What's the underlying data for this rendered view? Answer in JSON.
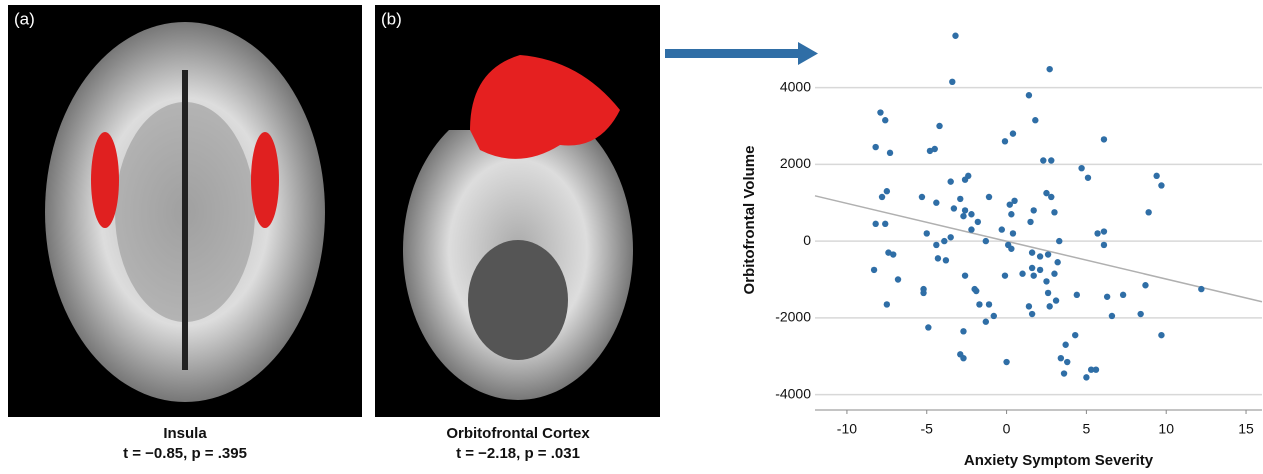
{
  "panels": [
    {
      "label": "(a)",
      "caption": "Insula",
      "stats": "t = −0.85, p = .395"
    },
    {
      "label": "(b)",
      "caption": "Orbitofrontal Cortex",
      "stats": "t = −2.18, p = .031"
    }
  ],
  "chart_data": {
    "type": "scatter",
    "x_label": "Anxiety Symptom Severity",
    "y_label": "Orbitofrontal Volume",
    "color": "#2f6ea6",
    "grid": true,
    "xlim": [
      -12,
      16
    ],
    "ylim": [
      -4400,
      5500
    ],
    "xticks": [
      -10,
      -5,
      0,
      5,
      10,
      15
    ],
    "yticks": [
      -4000,
      -2000,
      0,
      2000,
      4000
    ],
    "fit_line": {
      "color": "#b0b0b0",
      "x": [
        -12,
        16
      ],
      "y": [
        1180,
        -1580
      ]
    },
    "x": [
      -8.2,
      -7.3,
      -4.8,
      -4.5,
      -3.5,
      -2.6,
      -2.4,
      -7.5,
      -7.8,
      -5.3,
      -4.4,
      -2.9,
      -2.6,
      -2.2,
      -2.7,
      -3.3,
      -1.1,
      0.2,
      0.5,
      0.3,
      1.5,
      1.7,
      2.3,
      2.8,
      2.5,
      2.8,
      3.0,
      4.7,
      5.1,
      6.1,
      9.4,
      9.7,
      8.9,
      -0.1,
      0.4,
      1.8,
      2.7,
      1.4,
      -3.2,
      -3.4,
      -7.9,
      -7.6,
      -4.2,
      -8.2,
      -7.6,
      -5.0,
      -4.4,
      -3.9,
      -3.5,
      -2.2,
      -1.8,
      -1.3,
      -0.3,
      0.1,
      0.3,
      0.4,
      1.6,
      2.1,
      2.6,
      3.2,
      5.7,
      6.1,
      6.1,
      -7.1,
      -7.4,
      -6.8,
      -7.5,
      -8.3,
      -5.2,
      -5.2,
      -4.3,
      -3.8,
      -2.6,
      -2.0,
      -1.7,
      -1.1,
      -1.3,
      -0.8,
      -2.7,
      -2.9,
      -2.7,
      -4.9,
      -0.1,
      1.0,
      1.6,
      1.7,
      2.1,
      2.5,
      2.6,
      3.0,
      3.1,
      2.7,
      1.4,
      1.6,
      0.0,
      3.4,
      3.8,
      3.7,
      4.3,
      3.6,
      5.0,
      5.3,
      5.6,
      6.3,
      6.6,
      7.3,
      8.7,
      8.4,
      9.7,
      12.2,
      4.4,
      3.3,
      -1.9
    ],
    "values": [
      2450,
      2300,
      2350,
      2400,
      1550,
      1600,
      1700,
      1300,
      1150,
      1150,
      1000,
      1100,
      800,
      700,
      650,
      850,
      1150,
      950,
      1050,
      700,
      500,
      800,
      2100,
      2100,
      1250,
      1150,
      750,
      1900,
      1650,
      2650,
      1700,
      1450,
      750,
      2600,
      2800,
      3150,
      4480,
      3800,
      5350,
      4150,
      3350,
      3150,
      3000,
      450,
      450,
      200,
      -100,
      0,
      100,
      300,
      500,
      0,
      300,
      -100,
      -200,
      200,
      -300,
      -400,
      -350,
      -550,
      200,
      -100,
      250,
      -350,
      -300,
      -1000,
      -1650,
      -750,
      -1250,
      -1350,
      -450,
      -500,
      -900,
      -1250,
      -1650,
      -1650,
      -2100,
      -1950,
      -2350,
      -2950,
      -3050,
      -2250,
      -900,
      -850,
      -700,
      -900,
      -750,
      -1050,
      -1350,
      -850,
      -1550,
      -1700,
      -1700,
      -1900,
      -3150,
      -3050,
      -3150,
      -2700,
      -2450,
      -3450,
      -3550,
      -3350,
      -3350,
      -1450,
      -1950,
      -1400,
      -1150,
      -1900,
      -2450,
      -1250,
      -1400,
      0,
      -1300
    ]
  }
}
